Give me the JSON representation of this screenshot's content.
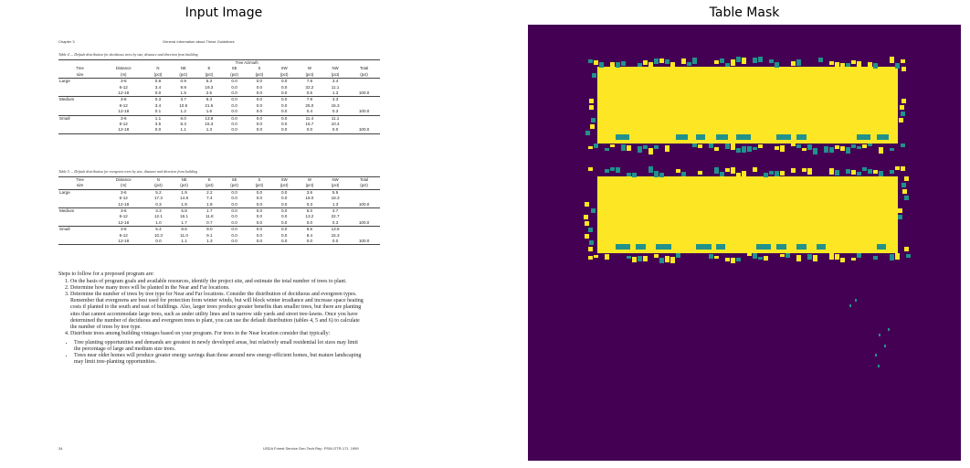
{
  "panels": {
    "left_title": "Input Image",
    "right_title": "Table Mask"
  },
  "document": {
    "header_left": "Chapter 3",
    "header_center": "General Information about These Guidelines",
    "table1": {
      "caption": "Table 4 — Default distribution for deciduous trees by size, distance and direction from building",
      "group_header": "Tree Azimuth",
      "col_heads": [
        "Tree",
        "Distance",
        "N",
        "NE",
        "E",
        "SE",
        "S",
        "SW",
        "W",
        "NW",
        "Total"
      ],
      "col_units": [
        "size",
        "(m)",
        "(pct)",
        "(pct)",
        "(pct)",
        "(pct)",
        "(pct)",
        "(pct)",
        "(pct)",
        "(pct)",
        "(pct)"
      ],
      "rows": [
        [
          "Large",
          "3-6",
          "0.9",
          "0.9",
          "5.3",
          "0.0",
          "0.0",
          "0.0",
          "7.8",
          "3.4",
          ""
        ],
        [
          "",
          "6-12",
          "3.4",
          "9.9",
          "19.3",
          "0.0",
          "0.0",
          "0.0",
          "32.2",
          "11.1",
          ""
        ],
        [
          "",
          "12-18",
          "0.0",
          "1.5",
          "2.5",
          "0.0",
          "0.0",
          "0.0",
          "0.5",
          "1.3",
          "100.0"
        ],
        [
          "Medium",
          "3-6",
          "0.3",
          "3.7",
          "5.3",
          "0.0",
          "0.0",
          "0.0",
          "7.9",
          "3.3",
          ""
        ],
        [
          "",
          "6-12",
          "3.4",
          "10.6",
          "21.6",
          "0.0",
          "0.0",
          "0.0",
          "25.0",
          "15.3",
          ""
        ],
        [
          "",
          "12-18",
          "0.1",
          "1.2",
          "1.6",
          "0.0",
          "0.0",
          "0.0",
          "0.4",
          "0.3",
          "100.0"
        ],
        [
          "Small",
          "3-6",
          "1.1",
          "6.0",
          "13.8",
          "0.0",
          "0.0",
          "0.0",
          "11.4",
          "11.1",
          ""
        ],
        [
          "",
          "6-12",
          "3.5",
          "8.3",
          "15.3",
          "0.0",
          "0.0",
          "0.0",
          "16.7",
          "10.4",
          ""
        ],
        [
          "",
          "12-18",
          "0.0",
          "1.1",
          "1.3",
          "0.0",
          "0.0",
          "0.0",
          "0.0",
          "0.0",
          "100.0"
        ]
      ]
    },
    "table2": {
      "caption": "Table 5 — Default distribution for evergreen trees by size, distance and direction from building",
      "col_heads": [
        "Tree",
        "Distance",
        "N",
        "NE",
        "E",
        "SE",
        "S",
        "SW",
        "W",
        "NW",
        "Total"
      ],
      "col_units": [
        "size",
        "(m)",
        "(pct)",
        "(pct)",
        "(pct)",
        "(pct)",
        "(pct)",
        "(pct)",
        "(pct)",
        "(pct)",
        "(pct)"
      ],
      "rows": [
        [
          "Large",
          "3-6",
          "5.2",
          "1.9",
          "2.2",
          "0.0",
          "0.0",
          "0.0",
          "3.6",
          "5.5",
          ""
        ],
        [
          "",
          "6-12",
          "17.3",
          "14.8",
          "7.4",
          "0.0",
          "0.0",
          "0.0",
          "18.0",
          "18.3",
          ""
        ],
        [
          "",
          "12-18",
          "0.3",
          "1.9",
          "1.9",
          "0.0",
          "0.0",
          "0.0",
          "0.3",
          "1.3",
          "100.0"
        ],
        [
          "Medium",
          "3-6",
          "3.3",
          "5.8",
          "1.7",
          "0.0",
          "0.0",
          "0.0",
          "5.0",
          "4.7",
          ""
        ],
        [
          "",
          "6-12",
          "12.1",
          "16.1",
          "11.8",
          "0.0",
          "0.0",
          "0.0",
          "13.2",
          "22.7",
          ""
        ],
        [
          "",
          "12-18",
          "1.0",
          "1.7",
          "0.7",
          "0.0",
          "0.0",
          "0.0",
          "0.0",
          "0.3",
          "100.0"
        ],
        [
          "Small",
          "3-6",
          "5.4",
          "8.6",
          "9.0",
          "0.0",
          "0.0",
          "0.0",
          "6.6",
          "13.8",
          ""
        ],
        [
          "",
          "6-12",
          "10.3",
          "11.0",
          "9.1",
          "0.0",
          "0.0",
          "0.0",
          "8.4",
          "15.3",
          ""
        ],
        [
          "",
          "12-18",
          "0.0",
          "1.1",
          "1.3",
          "0.0",
          "0.0",
          "0.0",
          "0.0",
          "0.0",
          "100.0"
        ]
      ]
    },
    "steps_intro": "Steps to follow for a proposed program are:",
    "steps": [
      "On the basis of program goals and available resources, identify the project site, and estimate the total number of trees to plant.",
      "Determine how many trees will be planted in the Near and Far locations.",
      "Determine the number of trees by tree type for Near and Far locations. Consider the distribution of deciduous and evergreen types. Remember that evergreens are best used for protection from winter winds, but will block winter irradiance and increase space heating costs if planted to the south and east of buildings. Also, larger trees produce greater benefits than smaller trees, but there are planting sites that cannot accommodate large trees, such as under utility lines and in narrow side yards and street tree-lawns. Once you have determined the number of deciduous and evergreen trees to plant, you can use the default distribution (tables 4, 5 and 6) to calculate the number of trees by tree type.",
      "Distribute trees among building vintages based on your program. For trees in the Near location consider that typically:"
    ],
    "bullets": [
      "Tree planting opportunities and demands are greatest in newly developed areas, but relatively small residential lot sizes may limit the percentage of large and medium size trees.",
      "Trees near older homes will produce greater energy savings than those around new energy-efficient homes, but mature landscaping may limit tree-planting opportunities."
    ],
    "footer_left": "34",
    "footer_right": "USDA Forest Service Gen.Tech.Rep. PSW-GTR-171. 1999"
  },
  "mask": {
    "background": "#440154",
    "foreground": "#fde725",
    "edge": "#21918c"
  }
}
